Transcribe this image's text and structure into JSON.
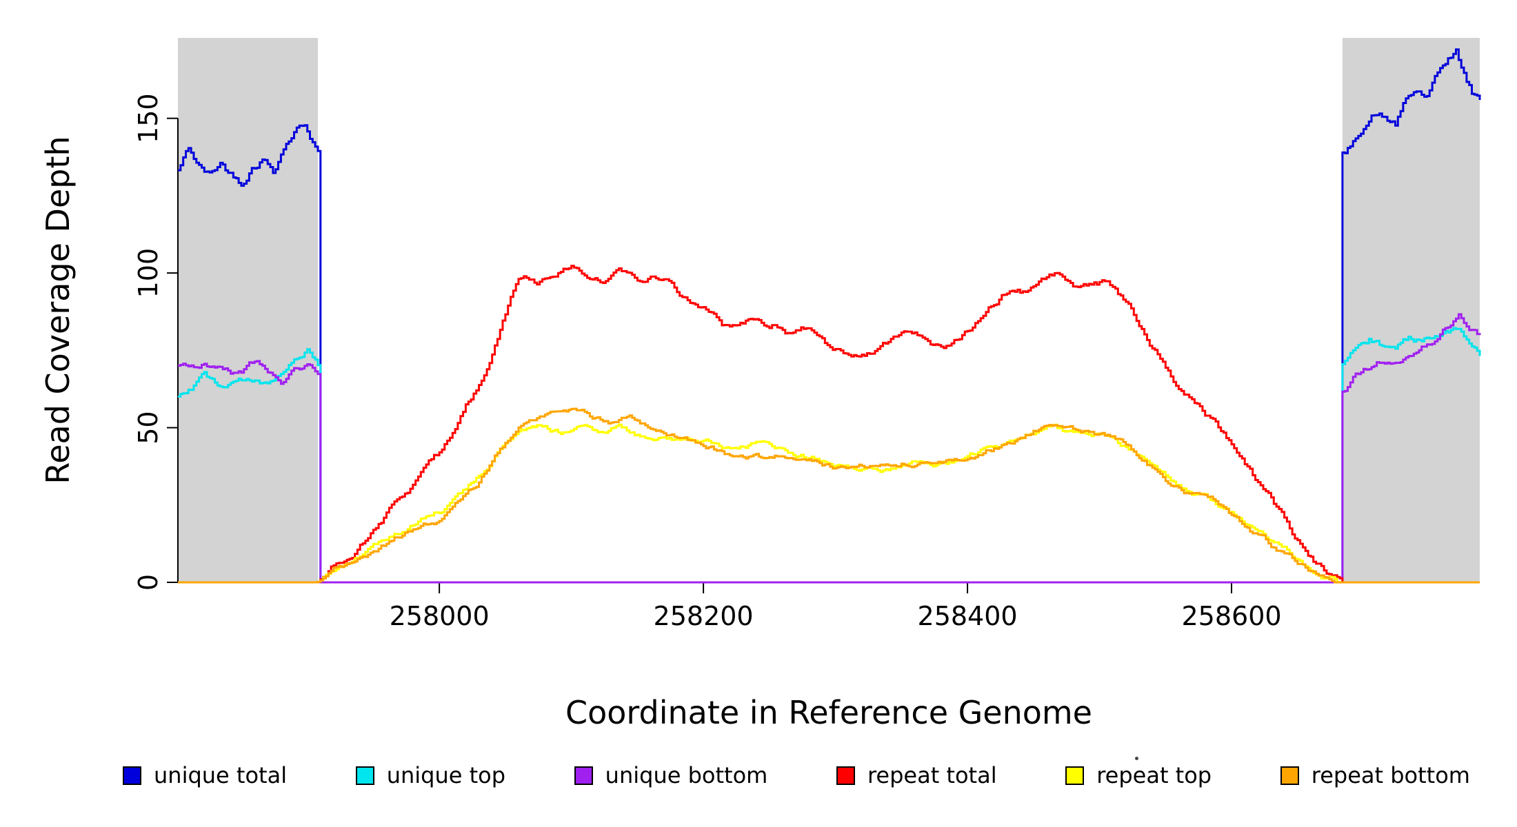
{
  "chart_data": {
    "type": "line",
    "title": "",
    "xlabel": "Coordinate in Reference Genome",
    "ylabel": "Read Coverage Depth",
    "xlim": [
      257802,
      258788
    ],
    "ylim": [
      0,
      176
    ],
    "x_ticks": [
      258000,
      258200,
      258400,
      258600
    ],
    "y_ticks": [
      0,
      50,
      100,
      150
    ],
    "grid": false,
    "legend_position": "bottom",
    "shaded_regions": [
      {
        "x0": 257802,
        "x1": 257908,
        "color": "#d3d3d3"
      },
      {
        "x0": 258684,
        "x1": 258788,
        "color": "#d3d3d3"
      }
    ],
    "series": [
      {
        "name": "unique total",
        "color": "#0000dc",
        "jitter": 2.2,
        "points": [
          [
            257802,
            133
          ],
          [
            257810,
            140
          ],
          [
            257818,
            134
          ],
          [
            257826,
            131
          ],
          [
            257834,
            135
          ],
          [
            257842,
            132
          ],
          [
            257850,
            130
          ],
          [
            257858,
            136
          ],
          [
            257866,
            139
          ],
          [
            257874,
            135
          ],
          [
            257882,
            143
          ],
          [
            257890,
            148
          ],
          [
            257898,
            150
          ],
          [
            257904,
            145
          ],
          [
            257908,
            141
          ],
          [
            257909,
            0
          ],
          [
            258683,
            0
          ],
          [
            258684,
            138
          ],
          [
            258692,
            141
          ],
          [
            258700,
            148
          ],
          [
            258708,
            152
          ],
          [
            258716,
            150
          ],
          [
            258724,
            148
          ],
          [
            258732,
            155
          ],
          [
            258740,
            158
          ],
          [
            258748,
            156
          ],
          [
            258756,
            162
          ],
          [
            258764,
            168
          ],
          [
            258770,
            170
          ],
          [
            258776,
            163
          ],
          [
            258782,
            157
          ],
          [
            258788,
            155
          ]
        ]
      },
      {
        "name": "unique top",
        "color": "#00e5ee",
        "jitter": 1.7,
        "points": [
          [
            257802,
            60
          ],
          [
            257812,
            63
          ],
          [
            257822,
            66
          ],
          [
            257832,
            62
          ],
          [
            257842,
            64
          ],
          [
            257852,
            65
          ],
          [
            257862,
            67
          ],
          [
            257872,
            66
          ],
          [
            257882,
            69
          ],
          [
            257892,
            72
          ],
          [
            257900,
            75
          ],
          [
            257908,
            71
          ],
          [
            257909,
            0
          ],
          [
            258683,
            0
          ],
          [
            258684,
            70
          ],
          [
            258694,
            76
          ],
          [
            258704,
            79
          ],
          [
            258714,
            77
          ],
          [
            258724,
            76
          ],
          [
            258734,
            79
          ],
          [
            258744,
            78
          ],
          [
            258754,
            80
          ],
          [
            258764,
            80
          ],
          [
            258774,
            80
          ],
          [
            258781,
            76
          ],
          [
            258788,
            73
          ]
        ]
      },
      {
        "name": "unique bottom",
        "color": "#a020f0",
        "jitter": 1.7,
        "points": [
          [
            257802,
            70
          ],
          [
            257812,
            68
          ],
          [
            257822,
            70
          ],
          [
            257832,
            69
          ],
          [
            257842,
            67
          ],
          [
            257852,
            69
          ],
          [
            257862,
            71
          ],
          [
            257872,
            68
          ],
          [
            257882,
            66
          ],
          [
            257892,
            69
          ],
          [
            257900,
            71
          ],
          [
            257908,
            69
          ],
          [
            257909,
            0
          ],
          [
            258683,
            0
          ],
          [
            258684,
            62
          ],
          [
            258694,
            67
          ],
          [
            258704,
            70
          ],
          [
            258714,
            72
          ],
          [
            258724,
            73
          ],
          [
            258734,
            74
          ],
          [
            258744,
            76
          ],
          [
            258754,
            78
          ],
          [
            258764,
            82
          ],
          [
            258772,
            87
          ],
          [
            258780,
            80
          ],
          [
            258788,
            78
          ]
        ]
      },
      {
        "name": "repeat total",
        "color": "#ff0000",
        "jitter": 1.6,
        "points": [
          [
            257802,
            0
          ],
          [
            257907,
            0
          ],
          [
            257915,
            3
          ],
          [
            257930,
            9
          ],
          [
            257945,
            15
          ],
          [
            257960,
            22
          ],
          [
            257975,
            30
          ],
          [
            257990,
            36
          ],
          [
            258000,
            40
          ],
          [
            258010,
            48
          ],
          [
            258020,
            58
          ],
          [
            258030,
            65
          ],
          [
            258040,
            75
          ],
          [
            258050,
            88
          ],
          [
            258058,
            97
          ],
          [
            258065,
            100
          ],
          [
            258075,
            98
          ],
          [
            258085,
            101
          ],
          [
            258095,
            102
          ],
          [
            258105,
            103
          ],
          [
            258115,
            100
          ],
          [
            258125,
            99
          ],
          [
            258135,
            101
          ],
          [
            258145,
            98
          ],
          [
            258155,
            97
          ],
          [
            258165,
            98
          ],
          [
            258175,
            97
          ],
          [
            258185,
            93
          ],
          [
            258195,
            90
          ],
          [
            258205,
            87
          ],
          [
            258215,
            83
          ],
          [
            258225,
            82
          ],
          [
            258235,
            84
          ],
          [
            258245,
            83
          ],
          [
            258255,
            84
          ],
          [
            258265,
            82
          ],
          [
            258275,
            83
          ],
          [
            258285,
            80
          ],
          [
            258295,
            76
          ],
          [
            258305,
            74
          ],
          [
            258315,
            75
          ],
          [
            258325,
            76
          ],
          [
            258335,
            79
          ],
          [
            258345,
            81
          ],
          [
            258355,
            83
          ],
          [
            258365,
            82
          ],
          [
            258375,
            78
          ],
          [
            258385,
            77
          ],
          [
            258395,
            80
          ],
          [
            258405,
            82
          ],
          [
            258415,
            88
          ],
          [
            258425,
            93
          ],
          [
            258435,
            95
          ],
          [
            258445,
            94
          ],
          [
            258455,
            98
          ],
          [
            258465,
            100
          ],
          [
            258475,
            97
          ],
          [
            258485,
            93
          ],
          [
            258495,
            94
          ],
          [
            258505,
            95
          ],
          [
            258515,
            90
          ],
          [
            258525,
            85
          ],
          [
            258535,
            78
          ],
          [
            258545,
            72
          ],
          [
            258555,
            65
          ],
          [
            258565,
            60
          ],
          [
            258575,
            57
          ],
          [
            258585,
            53
          ],
          [
            258595,
            47
          ],
          [
            258605,
            42
          ],
          [
            258615,
            35
          ],
          [
            258625,
            28
          ],
          [
            258635,
            22
          ],
          [
            258645,
            15
          ],
          [
            258655,
            9
          ],
          [
            258665,
            5
          ],
          [
            258675,
            2
          ],
          [
            258684,
            0
          ],
          [
            258788,
            0
          ]
        ]
      },
      {
        "name": "repeat top",
        "color": "#ffff00",
        "jitter": 1.3,
        "points": [
          [
            257802,
            0
          ],
          [
            257907,
            0
          ],
          [
            257920,
            3
          ],
          [
            257940,
            8
          ],
          [
            257960,
            13
          ],
          [
            257980,
            18
          ],
          [
            258000,
            22
          ],
          [
            258015,
            28
          ],
          [
            258030,
            34
          ],
          [
            258045,
            42
          ],
          [
            258060,
            47
          ],
          [
            258075,
            50
          ],
          [
            258090,
            48
          ],
          [
            258105,
            49
          ],
          [
            258120,
            48
          ],
          [
            258135,
            50
          ],
          [
            258150,
            47
          ],
          [
            258165,
            48
          ],
          [
            258180,
            47
          ],
          [
            258195,
            45
          ],
          [
            258210,
            44
          ],
          [
            258225,
            42
          ],
          [
            258240,
            44
          ],
          [
            258255,
            42
          ],
          [
            258270,
            41
          ],
          [
            258285,
            40
          ],
          [
            258300,
            38
          ],
          [
            258315,
            37
          ],
          [
            258330,
            38
          ],
          [
            258345,
            38
          ],
          [
            258360,
            40
          ],
          [
            258375,
            38
          ],
          [
            258390,
            39
          ],
          [
            258405,
            41
          ],
          [
            258420,
            44
          ],
          [
            258435,
            46
          ],
          [
            258450,
            49
          ],
          [
            258465,
            50
          ],
          [
            258480,
            47
          ],
          [
            258495,
            48
          ],
          [
            258510,
            46
          ],
          [
            258525,
            42
          ],
          [
            258540,
            38
          ],
          [
            258555,
            33
          ],
          [
            258570,
            29
          ],
          [
            258585,
            26
          ],
          [
            258600,
            22
          ],
          [
            258615,
            17
          ],
          [
            258630,
            12
          ],
          [
            258645,
            8
          ],
          [
            258660,
            4
          ],
          [
            258672,
            1
          ],
          [
            258681,
            0
          ],
          [
            258788,
            0
          ]
        ]
      },
      {
        "name": "repeat bottom",
        "color": "#ffa500",
        "jitter": 1.3,
        "points": [
          [
            257802,
            0
          ],
          [
            257907,
            0
          ],
          [
            257920,
            3
          ],
          [
            257940,
            7
          ],
          [
            257960,
            12
          ],
          [
            257980,
            17
          ],
          [
            258000,
            20
          ],
          [
            258015,
            26
          ],
          [
            258030,
            33
          ],
          [
            258045,
            43
          ],
          [
            258060,
            50
          ],
          [
            258075,
            52
          ],
          [
            258090,
            53
          ],
          [
            258100,
            54
          ],
          [
            258115,
            52
          ],
          [
            258130,
            51
          ],
          [
            258145,
            52
          ],
          [
            258160,
            50
          ],
          [
            258175,
            48
          ],
          [
            258190,
            46
          ],
          [
            258205,
            44
          ],
          [
            258220,
            41
          ],
          [
            258235,
            40
          ],
          [
            258250,
            39
          ],
          [
            258265,
            40
          ],
          [
            258280,
            41
          ],
          [
            258295,
            38
          ],
          [
            258310,
            37
          ],
          [
            258325,
            38
          ],
          [
            258340,
            39
          ],
          [
            258355,
            40
          ],
          [
            258370,
            39
          ],
          [
            258385,
            40
          ],
          [
            258400,
            41
          ],
          [
            258415,
            43
          ],
          [
            258430,
            45
          ],
          [
            258445,
            48
          ],
          [
            258460,
            51
          ],
          [
            258475,
            49
          ],
          [
            258490,
            48
          ],
          [
            258505,
            47
          ],
          [
            258520,
            44
          ],
          [
            258535,
            39
          ],
          [
            258550,
            34
          ],
          [
            258565,
            30
          ],
          [
            258580,
            27
          ],
          [
            258595,
            24
          ],
          [
            258610,
            19
          ],
          [
            258625,
            14
          ],
          [
            258640,
            9
          ],
          [
            258655,
            5
          ],
          [
            258668,
            2
          ],
          [
            258678,
            0
          ],
          [
            258788,
            0
          ]
        ]
      }
    ]
  }
}
